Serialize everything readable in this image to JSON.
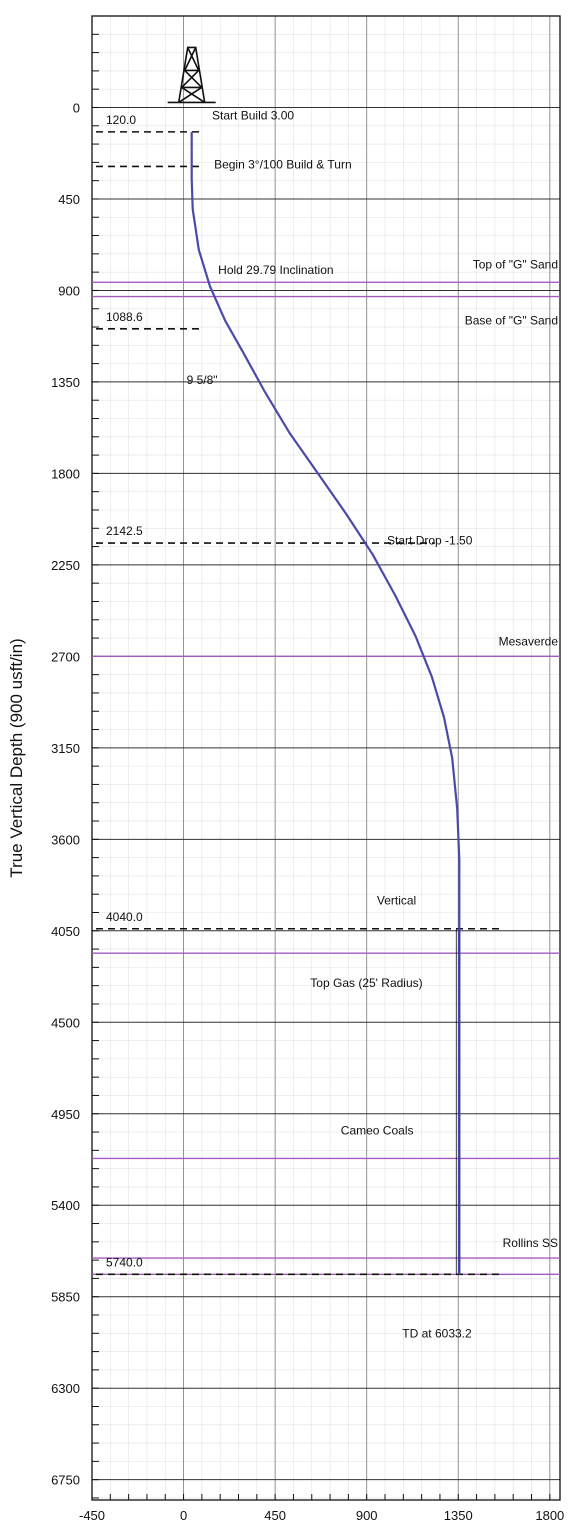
{
  "chart_data": {
    "type": "line",
    "ylabel": "True Vertical Depth (900 usft/in)",
    "xlabel": "",
    "xlim": [
      -450,
      1850
    ],
    "ylim": [
      6850,
      -450
    ],
    "y_inverted": true,
    "x_ticks": [
      -450,
      0,
      450,
      900,
      1350,
      1800
    ],
    "y_ticks": [
      0,
      450,
      900,
      1350,
      1800,
      2250,
      2700,
      3150,
      3600,
      4050,
      4500,
      4950,
      5400,
      5850,
      6300,
      6750
    ],
    "x_tick_labels": [
      "-450",
      "0",
      "450",
      "900",
      "1350",
      "1800"
    ],
    "y_tick_labels": [
      "0",
      "450",
      "900",
      "1350",
      "1800",
      "2250",
      "2700",
      "3150",
      "3600",
      "4050",
      "4500",
      "4950",
      "5400",
      "5850",
      "6300",
      "6750"
    ],
    "grid": true,
    "series": [
      {
        "color": "#4a4aa8",
        "x": [
          40,
          40,
          45,
          75,
          130,
          205,
          290,
          400,
          520,
          660,
          800,
          930,
          1040,
          1140,
          1220,
          1280,
          1320,
          1345,
          1355,
          1355,
          1355,
          1355
        ],
        "y": [
          120,
          350,
          500,
          700,
          880,
          1050,
          1200,
          1400,
          1600,
          1800,
          2000,
          2200,
          2400,
          2600,
          2800,
          3000,
          3200,
          3450,
          3700,
          4040,
          5000,
          5740
        ]
      }
    ],
    "vertical_line": {
      "x": 1355,
      "y_from": 4040,
      "y_to": 5740
    },
    "formations": [
      {
        "label": "Top of \"G\" Sand",
        "tvd": 860
      },
      {
        "label": "Base of \"G\" Sand",
        "tvd": 930
      },
      {
        "label": "Mesaverde",
        "tvd": 2700
      },
      {
        "label": "Top Gas (25' Radius)",
        "tvd": 4160
      },
      {
        "label": "Cameo Coals",
        "tvd": 5170
      },
      {
        "label": "Rollins SS",
        "tvd": 5660
      },
      {
        "label": "",
        "tvd": 5740
      }
    ],
    "markers": [
      {
        "value": "120.0",
        "tvd": 120
      },
      {
        "value": "",
        "tvd": 290
      },
      {
        "value": "1088.6",
        "tvd": 1088.6
      },
      {
        "value": "2142.5",
        "tvd": 2142.5
      },
      {
        "value": "4040.0",
        "tvd": 4040
      },
      {
        "value": "5740.0",
        "tvd": 5740
      }
    ],
    "annotations": [
      {
        "text": "Start Build 3.00",
        "x": 140,
        "tvd": 60
      },
      {
        "text": "Begin 3°/100 Build & Turn",
        "x": 150,
        "tvd": 300
      },
      {
        "text": "Hold 29.79 Inclination",
        "x": 170,
        "tvd": 820
      },
      {
        "text": "9 5/8\"",
        "x": 15,
        "tvd": 1360
      },
      {
        "text": "Start Drop -1.50",
        "x": 1000,
        "tvd": 2150
      },
      {
        "text": "Vertical",
        "x": 950,
        "tvd": 3920
      },
      {
        "text": "TD at 6033.2",
        "x": 1075,
        "tvd": 6050
      }
    ]
  }
}
